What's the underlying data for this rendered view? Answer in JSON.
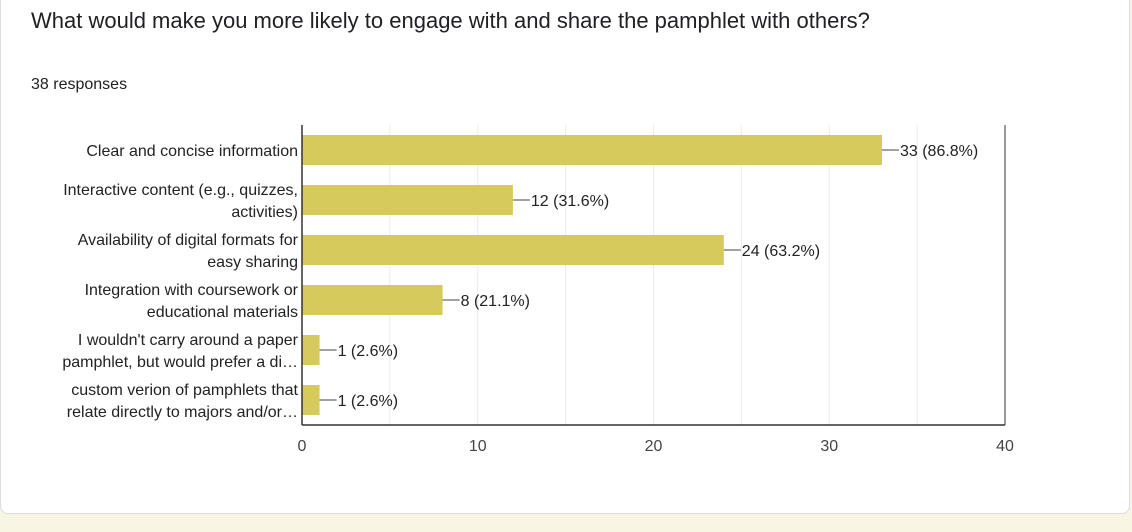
{
  "question": {
    "title": "What would make you more likely to engage with and share the pamphlet with others?",
    "responses": "38 responses"
  },
  "colors": {
    "bar": "#d6ca5c",
    "grid": "#ebebeb",
    "axis": "#333333",
    "text": "#222222",
    "tick": "#444444"
  },
  "chart_data": {
    "type": "bar",
    "orientation": "horizontal",
    "categories": [
      [
        "Clear and concise information"
      ],
      [
        "Interactive content (e.g., quizzes,",
        "activities)"
      ],
      [
        "Availability of digital formats for",
        "easy sharing"
      ],
      [
        "Integration with coursework or",
        "educational materials"
      ],
      [
        "I wouldn't carry around a paper",
        "pamphlet, but would prefer a di…"
      ],
      [
        "custom verion of pamphlets that",
        "relate directly to majors and/or…"
      ]
    ],
    "values": [
      33,
      12,
      24,
      8,
      1,
      1
    ],
    "data_labels": [
      "33 (86.8%)",
      "12 (31.6%)",
      "24 (63.2%)",
      "8 (21.1%)",
      "1 (2.6%)",
      "1 (2.6%)"
    ],
    "xlim": [
      0,
      40
    ],
    "xticks": [
      0,
      10,
      20,
      30,
      40
    ],
    "grid": true,
    "legend": "none"
  }
}
